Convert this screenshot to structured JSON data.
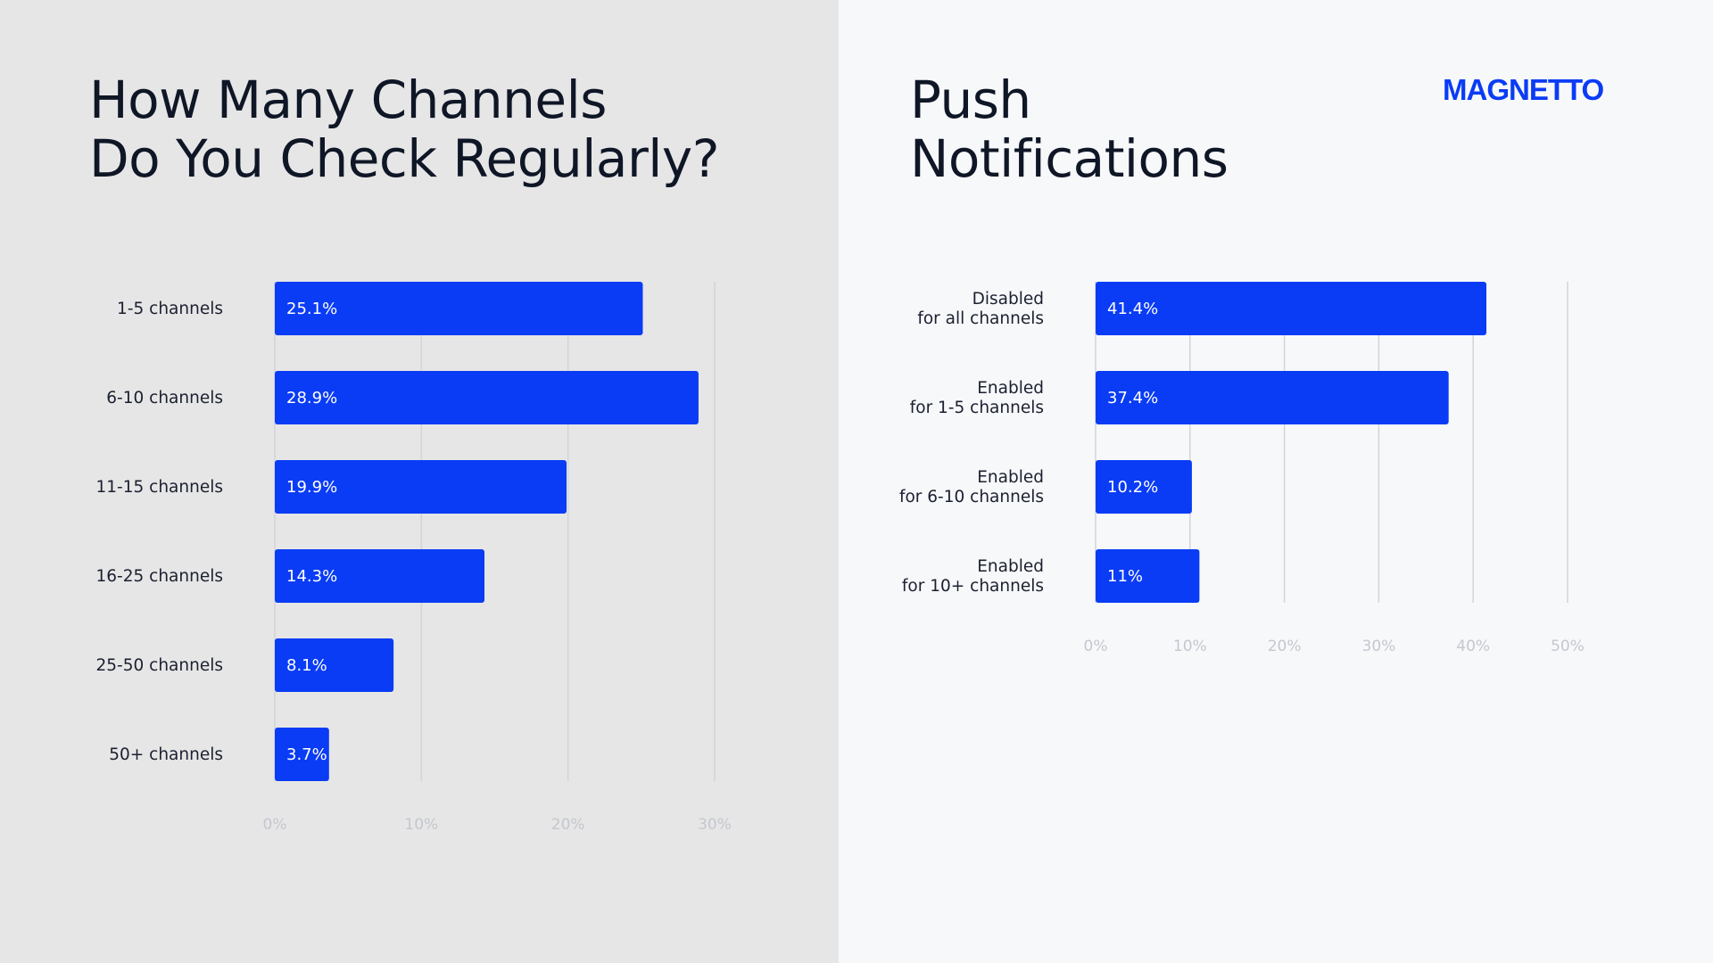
{
  "left_panel": {
    "title": "How Many Channels\nDo You Check Regularly?"
  },
  "right_panel": {
    "title": "Push\nNotifications",
    "logo": "MAGNETTO"
  },
  "colors": {
    "bar": "#0a3cf5",
    "left_background": "#e6e6e6",
    "right_background": "#f7f8fa",
    "gridline": "#d2d4d9"
  },
  "chart_data": [
    {
      "type": "bar",
      "orientation": "horizontal",
      "categories": [
        "1-5 channels",
        "6-10 channels",
        "11-15 channels",
        "16-25 channels",
        "25-50 channels",
        "50+ channels"
      ],
      "values": [
        25.1,
        28.9,
        19.9,
        14.3,
        8.1,
        3.7
      ],
      "value_labels": [
        "25.1%",
        "28.9%",
        "19.9%",
        "14.3%",
        "8.1%",
        "3.7%"
      ],
      "xlim": [
        0,
        30
      ],
      "ticks": [
        0,
        10,
        20,
        30
      ],
      "tick_labels": [
        "0%",
        "10%",
        "20%",
        "30%"
      ],
      "grid": true
    },
    {
      "type": "bar",
      "orientation": "horizontal",
      "categories": [
        [
          "Disabled",
          "for all channels"
        ],
        [
          "Enabled",
          "for 1-5 channels"
        ],
        [
          "Enabled",
          "for 6-10 channels"
        ],
        [
          "Enabled",
          "for 10+ channels"
        ]
      ],
      "values": [
        41.4,
        37.4,
        10.2,
        11
      ],
      "value_labels": [
        "41.4%",
        "37.4%",
        "10.2%",
        "11%"
      ],
      "xlim": [
        0,
        50
      ],
      "ticks": [
        0,
        10,
        20,
        30,
        40,
        50
      ],
      "tick_labels": [
        "0%",
        "10%",
        "20%",
        "30%",
        "40%",
        "50%"
      ],
      "grid": true
    }
  ]
}
